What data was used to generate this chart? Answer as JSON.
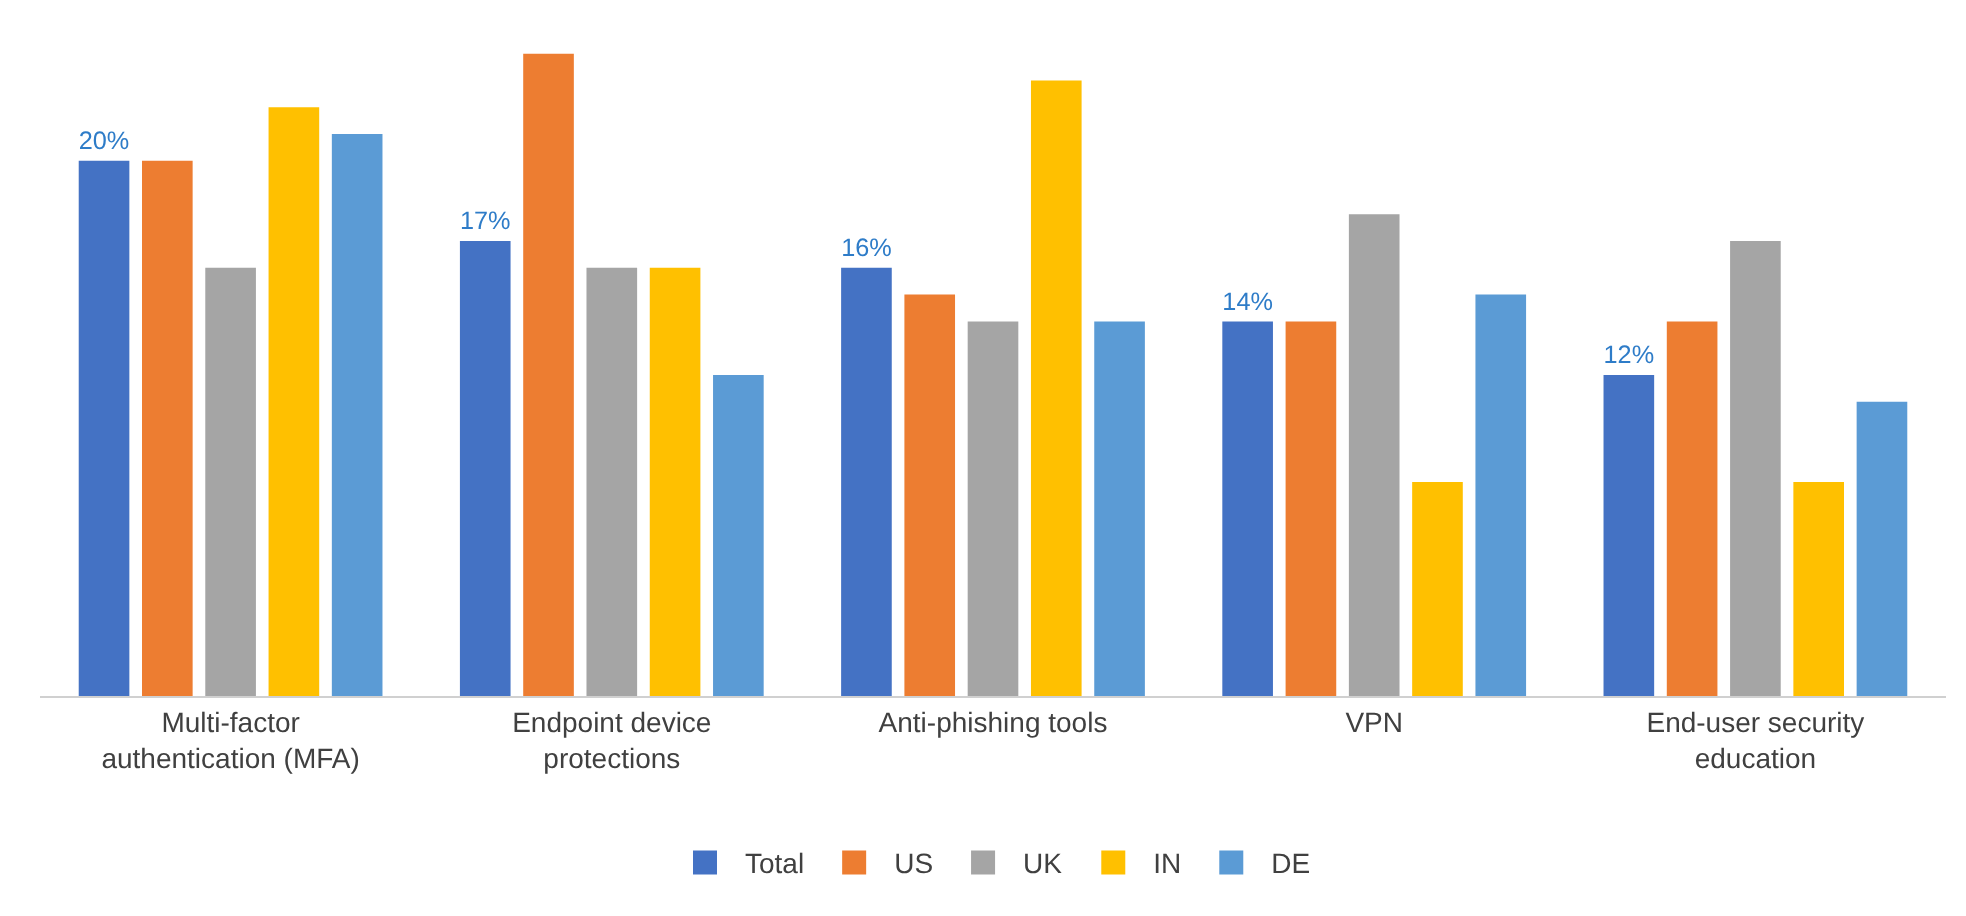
{
  "chart_data": {
    "type": "bar",
    "categories": [
      "Multi-factor authentication (MFA)",
      "Endpoint device protections",
      "Anti-phishing tools",
      "VPN",
      "End-user security education"
    ],
    "series": [
      {
        "name": "Total",
        "color": "#4472c4",
        "values": [
          20,
          17,
          16,
          14,
          12
        ],
        "value_labels": [
          "20%",
          "17%",
          "16%",
          "14%",
          "12%"
        ]
      },
      {
        "name": "US",
        "color": "#ed7d31",
        "values": [
          20,
          24,
          15,
          14,
          14
        ]
      },
      {
        "name": "UK",
        "color": "#a5a5a5",
        "values": [
          16,
          16,
          14,
          18,
          17
        ]
      },
      {
        "name": "IN",
        "color": "#ffc000",
        "values": [
          22,
          16,
          23,
          8,
          8
        ]
      },
      {
        "name": "DE",
        "color": "#5b9bd5",
        "values": [
          21,
          12,
          14,
          15,
          11
        ]
      }
    ],
    "grid": false,
    "legend": "bottom",
    "tick_labels": "x"
  }
}
